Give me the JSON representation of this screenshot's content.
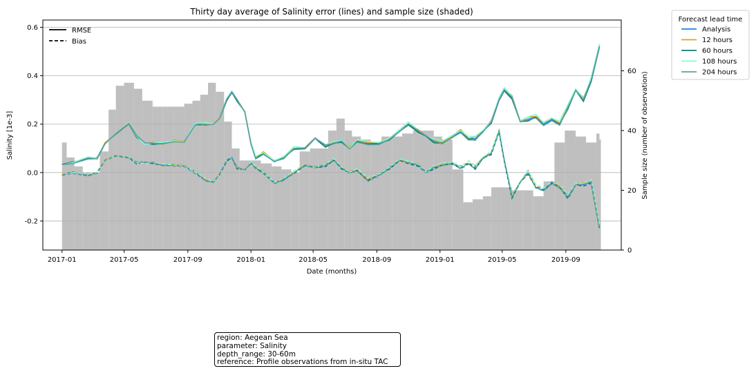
{
  "chart_data": {
    "type": "line",
    "title": "Thirty day average of Salinity error (lines) and sample size (shaded)",
    "xlabel": "Date (months)",
    "ylabel": "Salinity [1e-3]",
    "ylabel_right": "Sample size (number of observation)",
    "xticks": [
      "2017-01",
      "2017-05",
      "2017-09",
      "2018-01",
      "2018-05",
      "2018-09",
      "2019-01",
      "2019-05",
      "2019-09"
    ],
    "yticks_left": [
      "0.6",
      "0.4",
      "0.2",
      "0.0",
      "-0.2"
    ],
    "yticks_right": [
      "0",
      "20",
      "40",
      "60"
    ],
    "ylim": [
      -0.32,
      0.63
    ],
    "ylim_right": [
      0,
      77
    ],
    "xlim": [
      "2016-11-25",
      "2019-12-17"
    ],
    "grid": "horizontal",
    "style_legend": {
      "position": "top-left",
      "entries": [
        {
          "label": "RMSE",
          "style": "solid"
        },
        {
          "label": "Bias",
          "style": "dashed"
        }
      ]
    },
    "legend": {
      "title": "Forecast lead time",
      "position": "outside-right",
      "entries": [
        "Analysis",
        "12 hours",
        "60 hours",
        "108 hours",
        "204 hours"
      ]
    },
    "series_colors": [
      "#1e7fe6",
      "#dfa11c",
      "#0f7d72",
      "#7fffd4",
      "#5f9ea0"
    ],
    "shade_color": "#bfbfbf",
    "sample_size": {
      "x": [
        "2017-01-01",
        "2017-01-10",
        "2017-01-25",
        "2017-02-10",
        "2017-02-25",
        "2017-03-15",
        "2017-04-01",
        "2017-04-15",
        "2017-05-01",
        "2017-05-20",
        "2017-06-05",
        "2017-06-25",
        "2017-07-15",
        "2017-08-05",
        "2017-08-25",
        "2017-09-10",
        "2017-09-25",
        "2017-10-10",
        "2017-10-25",
        "2017-11-10",
        "2017-11-25",
        "2017-12-10",
        "2018-01-01",
        "2018-01-20",
        "2018-02-10",
        "2018-03-01",
        "2018-03-20",
        "2018-04-05",
        "2018-04-25",
        "2018-05-10",
        "2018-05-30",
        "2018-06-15",
        "2018-07-01",
        "2018-07-15",
        "2018-08-01",
        "2018-08-20",
        "2018-09-10",
        "2018-10-01",
        "2018-10-20",
        "2018-11-10",
        "2018-12-01",
        "2018-12-20",
        "2019-01-05",
        "2019-01-25",
        "2019-02-15",
        "2019-03-05",
        "2019-03-25",
        "2019-04-10",
        "2019-04-30",
        "2019-05-20",
        "2019-06-10",
        "2019-06-30",
        "2019-07-20",
        "2019-08-10",
        "2019-08-30",
        "2019-09-20",
        "2019-10-10",
        "2019-10-30",
        "2019-11-05"
      ],
      "values": [
        36,
        31,
        28,
        26,
        26,
        33,
        47,
        55,
        56,
        54,
        50,
        48,
        48,
        48,
        49,
        50,
        52,
        56,
        53,
        43,
        34,
        30,
        30,
        29,
        28,
        27,
        26,
        33,
        34,
        34,
        40,
        44,
        40,
        38,
        37,
        36,
        38,
        38,
        39,
        40,
        40,
        38,
        37,
        27,
        16,
        17,
        18,
        21,
        21,
        20,
        20,
        18,
        23,
        36,
        40,
        38,
        36,
        39,
        37
      ]
    },
    "rmse": {
      "x": [
        "2017-01-01",
        "2017-01-20",
        "2017-02-20",
        "2017-03-10",
        "2017-03-25",
        "2017-04-15",
        "2017-05-10",
        "2017-05-25",
        "2017-06-10",
        "2017-06-25",
        "2017-07-15",
        "2017-08-05",
        "2017-08-25",
        "2017-09-15",
        "2017-10-05",
        "2017-10-20",
        "2017-11-01",
        "2017-11-15",
        "2017-11-25",
        "2017-12-05",
        "2017-12-20",
        "2018-01-01",
        "2018-01-10",
        "2018-01-25",
        "2018-02-15",
        "2018-03-05",
        "2018-03-25",
        "2018-04-15",
        "2018-05-05",
        "2018-05-25",
        "2018-06-10",
        "2018-06-25",
        "2018-07-10",
        "2018-07-25",
        "2018-08-15",
        "2018-09-05",
        "2018-09-25",
        "2018-10-15",
        "2018-11-01",
        "2018-11-20",
        "2018-12-05",
        "2018-12-20",
        "2019-01-05",
        "2019-01-25",
        "2019-02-10",
        "2019-02-25",
        "2019-03-10",
        "2019-03-25",
        "2019-04-10",
        "2019-04-25",
        "2019-05-05",
        "2019-05-20",
        "2019-06-05",
        "2019-06-20",
        "2019-07-05",
        "2019-07-20",
        "2019-08-05",
        "2019-08-20",
        "2019-09-05",
        "2019-09-20",
        "2019-10-05",
        "2019-10-20",
        "2019-11-05"
      ],
      "values": [
        0.035,
        0.04,
        0.06,
        0.06,
        0.12,
        0.16,
        0.2,
        0.15,
        0.12,
        0.12,
        0.12,
        0.13,
        0.13,
        0.2,
        0.2,
        0.2,
        0.22,
        0.3,
        0.33,
        0.3,
        0.25,
        0.12,
        0.06,
        0.08,
        0.05,
        0.06,
        0.1,
        0.1,
        0.14,
        0.11,
        0.12,
        0.13,
        0.1,
        0.13,
        0.12,
        0.12,
        0.14,
        0.17,
        0.2,
        0.17,
        0.15,
        0.13,
        0.12,
        0.15,
        0.17,
        0.14,
        0.14,
        0.17,
        0.21,
        0.3,
        0.34,
        0.31,
        0.21,
        0.22,
        0.23,
        0.2,
        0.22,
        0.2,
        0.27,
        0.34,
        0.3,
        0.38,
        0.52
      ]
    },
    "bias": {
      "x": [
        "2017-01-01",
        "2017-01-20",
        "2017-02-20",
        "2017-03-10",
        "2017-03-25",
        "2017-04-15",
        "2017-05-10",
        "2017-05-25",
        "2017-06-10",
        "2017-06-25",
        "2017-07-15",
        "2017-08-05",
        "2017-08-25",
        "2017-09-15",
        "2017-10-05",
        "2017-10-20",
        "2017-11-01",
        "2017-11-15",
        "2017-11-25",
        "2017-12-05",
        "2017-12-20",
        "2018-01-01",
        "2018-01-10",
        "2018-01-25",
        "2018-02-15",
        "2018-03-05",
        "2018-03-25",
        "2018-04-15",
        "2018-05-05",
        "2018-05-25",
        "2018-06-10",
        "2018-06-25",
        "2018-07-10",
        "2018-07-25",
        "2018-08-15",
        "2018-09-05",
        "2018-09-25",
        "2018-10-15",
        "2018-11-01",
        "2018-11-20",
        "2018-12-05",
        "2018-12-20",
        "2019-01-05",
        "2019-01-25",
        "2019-02-10",
        "2019-02-25",
        "2019-03-10",
        "2019-03-25",
        "2019-04-10",
        "2019-04-25",
        "2019-05-05",
        "2019-05-20",
        "2019-06-05",
        "2019-06-20",
        "2019-07-05",
        "2019-07-20",
        "2019-08-05",
        "2019-08-20",
        "2019-09-05",
        "2019-09-20",
        "2019-10-05",
        "2019-10-20",
        "2019-11-05"
      ],
      "values": [
        -0.01,
        0.0,
        -0.01,
        0.0,
        0.05,
        0.07,
        0.06,
        0.04,
        0.04,
        0.04,
        0.03,
        0.03,
        0.03,
        0.0,
        -0.03,
        -0.04,
        -0.01,
        0.05,
        0.06,
        0.02,
        0.01,
        0.04,
        0.02,
        0.0,
        -0.04,
        -0.03,
        0.0,
        0.03,
        0.02,
        0.03,
        0.05,
        0.02,
        0.0,
        0.01,
        -0.03,
        -0.01,
        0.02,
        0.05,
        0.04,
        0.03,
        0.0,
        0.02,
        0.03,
        0.04,
        0.02,
        0.04,
        0.02,
        0.06,
        0.08,
        0.17,
        0.05,
        -0.1,
        -0.04,
        0.0,
        -0.06,
        -0.07,
        -0.04,
        -0.06,
        -0.1,
        -0.05,
        -0.05,
        -0.04,
        -0.23
      ]
    }
  },
  "annotation": {
    "lines": [
      "region: Aegean Sea",
      "parameter: Salinity",
      "depth_range: 30-60m",
      "reference: Profile observations from in-situ TAC"
    ]
  }
}
